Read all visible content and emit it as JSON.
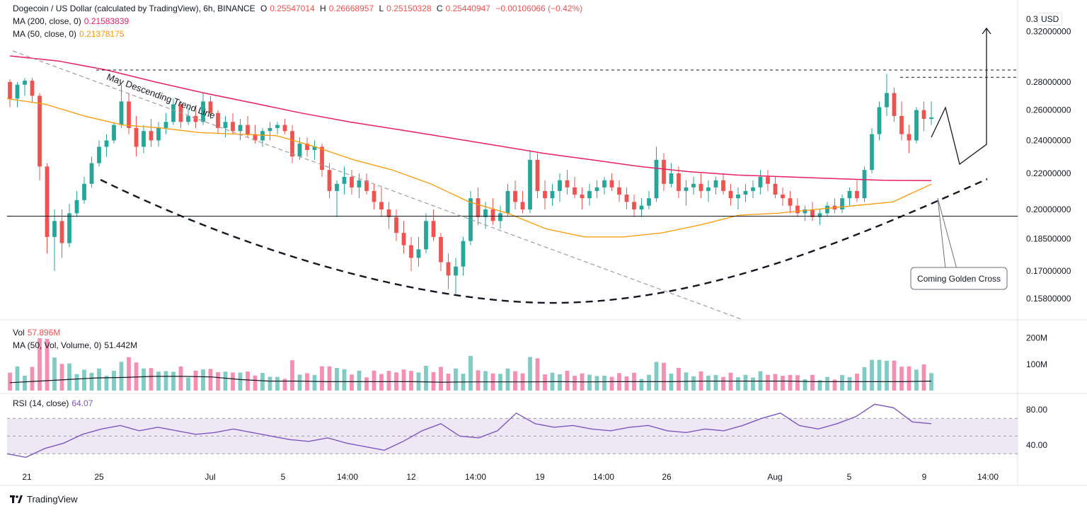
{
  "header": {
    "symbol": "Dogecoin / US Dollar (calculated by TradingView), 6h, BINANCE",
    "o_label": "O",
    "o_value": "0.25547014",
    "h_label": "H",
    "h_value": "0.26668957",
    "l_label": "L",
    "l_value": "0.25150328",
    "c_label": "C",
    "c_value": "0.25440947",
    "change": "−0.00106066 (−0.42%)"
  },
  "indicators": {
    "ma200_label": "MA (200, close, 0)",
    "ma200_value": "0.21583839",
    "ma50_label": "MA (50, close, 0)",
    "ma50_value": "0.21378175",
    "vol_label": "Vol",
    "vol_value": "57.896M",
    "volma_label": "MA (50, Vol, Volume, 0)",
    "volma_value": "51.442M",
    "rsi_label": "RSI (14, close)",
    "rsi_value": "64.07"
  },
  "currency": "USD",
  "footer": {
    "brand": "TradingView"
  },
  "colors": {
    "up": "#26a69a",
    "down": "#ef5350",
    "ma200": "#e91e63",
    "ma50": "#ff9800",
    "rsi": "#7e57c2",
    "rsi_band": "#ede7f6",
    "vol_up": "#80cbc4",
    "vol_down": "#f48fb1"
  },
  "chart_data": {
    "type": "candlestick",
    "price_axis_ticks": [
      "0.3",
      "0.32000000",
      "0.28000000",
      "0.26000000",
      "0.24000000",
      "0.22000000",
      "0.20000000",
      "0.18500000",
      "0.17000000",
      "0.15800000"
    ],
    "time_axis_ticks": [
      "21",
      "25",
      "Jul",
      "5",
      "14:00",
      "12",
      "14:00",
      "19",
      "14:00",
      "26",
      "Aug",
      "5",
      "9",
      "14:00"
    ],
    "volume_axis_ticks": [
      "200M",
      "100M"
    ],
    "rsi_axis_ticks": [
      "80.00",
      "40.00"
    ],
    "annotations": [
      "May Descending Trend Line",
      "Coming Golden Cross"
    ],
    "candles_ohlc_approx": [
      [
        0.28,
        0.282,
        0.262,
        0.268
      ],
      [
        0.268,
        0.28,
        0.262,
        0.278
      ],
      [
        0.278,
        0.283,
        0.27,
        0.281
      ],
      [
        0.281,
        0.283,
        0.265,
        0.27
      ],
      [
        0.27,
        0.272,
        0.216,
        0.224
      ],
      [
        0.224,
        0.226,
        0.178,
        0.186
      ],
      [
        0.186,
        0.2,
        0.17,
        0.194
      ],
      [
        0.194,
        0.2,
        0.176,
        0.183
      ],
      [
        0.183,
        0.203,
        0.181,
        0.198
      ],
      [
        0.198,
        0.21,
        0.196,
        0.205
      ],
      [
        0.205,
        0.218,
        0.203,
        0.214
      ],
      [
        0.214,
        0.23,
        0.212,
        0.226
      ],
      [
        0.226,
        0.24,
        0.224,
        0.236
      ],
      [
        0.236,
        0.244,
        0.23,
        0.24
      ],
      [
        0.24,
        0.252,
        0.238,
        0.25
      ],
      [
        0.25,
        0.278,
        0.248,
        0.266
      ],
      [
        0.266,
        0.272,
        0.244,
        0.248
      ],
      [
        0.248,
        0.256,
        0.23,
        0.236
      ],
      [
        0.236,
        0.25,
        0.232,
        0.246
      ],
      [
        0.246,
        0.254,
        0.236,
        0.24
      ],
      [
        0.24,
        0.252,
        0.236,
        0.248
      ],
      [
        0.248,
        0.258,
        0.244,
        0.252
      ],
      [
        0.252,
        0.268,
        0.25,
        0.264
      ],
      [
        0.264,
        0.266,
        0.248,
        0.252
      ],
      [
        0.252,
        0.262,
        0.25,
        0.256
      ],
      [
        0.256,
        0.262,
        0.248,
        0.252
      ],
      [
        0.252,
        0.272,
        0.25,
        0.266
      ],
      [
        0.266,
        0.27,
        0.254,
        0.258
      ],
      [
        0.258,
        0.26,
        0.244,
        0.248
      ],
      [
        0.248,
        0.256,
        0.242,
        0.252
      ],
      [
        0.252,
        0.258,
        0.244,
        0.246
      ],
      [
        0.246,
        0.254,
        0.24,
        0.25
      ],
      [
        0.25,
        0.256,
        0.242,
        0.244
      ],
      [
        0.244,
        0.25,
        0.238,
        0.24
      ],
      [
        0.24,
        0.248,
        0.236,
        0.246
      ],
      [
        0.246,
        0.252,
        0.24,
        0.248
      ],
      [
        0.248,
        0.252,
        0.244,
        0.25
      ],
      [
        0.25,
        0.254,
        0.244,
        0.246
      ],
      [
        0.246,
        0.25,
        0.226,
        0.23
      ],
      [
        0.23,
        0.242,
        0.228,
        0.238
      ],
      [
        0.238,
        0.242,
        0.23,
        0.234
      ],
      [
        0.234,
        0.24,
        0.228,
        0.236
      ],
      [
        0.236,
        0.238,
        0.218,
        0.222
      ],
      [
        0.222,
        0.226,
        0.206,
        0.21
      ],
      [
        0.21,
        0.216,
        0.196,
        0.214
      ],
      [
        0.214,
        0.224,
        0.208,
        0.218
      ],
      [
        0.218,
        0.222,
        0.208,
        0.212
      ],
      [
        0.212,
        0.22,
        0.206,
        0.216
      ],
      [
        0.216,
        0.22,
        0.208,
        0.21
      ],
      [
        0.21,
        0.214,
        0.2,
        0.204
      ],
      [
        0.204,
        0.212,
        0.196,
        0.2
      ],
      [
        0.2,
        0.204,
        0.19,
        0.196
      ],
      [
        0.196,
        0.2,
        0.184,
        0.188
      ],
      [
        0.188,
        0.194,
        0.178,
        0.182
      ],
      [
        0.182,
        0.186,
        0.17,
        0.176
      ],
      [
        0.176,
        0.186,
        0.172,
        0.18
      ],
      [
        0.18,
        0.198,
        0.178,
        0.194
      ],
      [
        0.194,
        0.2,
        0.184,
        0.186
      ],
      [
        0.186,
        0.188,
        0.17,
        0.174
      ],
      [
        0.174,
        0.178,
        0.162,
        0.168
      ],
      [
        0.168,
        0.176,
        0.16,
        0.172
      ],
      [
        0.172,
        0.186,
        0.168,
        0.184
      ],
      [
        0.184,
        0.21,
        0.182,
        0.206
      ],
      [
        0.206,
        0.212,
        0.192,
        0.196
      ],
      [
        0.196,
        0.204,
        0.19,
        0.2
      ],
      [
        0.2,
        0.206,
        0.192,
        0.194
      ],
      [
        0.194,
        0.202,
        0.19,
        0.198
      ],
      [
        0.198,
        0.214,
        0.196,
        0.21
      ],
      [
        0.21,
        0.216,
        0.2,
        0.204
      ],
      [
        0.204,
        0.21,
        0.198,
        0.2
      ],
      [
        0.2,
        0.234,
        0.198,
        0.228
      ],
      [
        0.228,
        0.232,
        0.206,
        0.21
      ],
      [
        0.21,
        0.216,
        0.2,
        0.206
      ],
      [
        0.206,
        0.214,
        0.202,
        0.21
      ],
      [
        0.21,
        0.22,
        0.204,
        0.216
      ],
      [
        0.216,
        0.222,
        0.208,
        0.212
      ],
      [
        0.212,
        0.218,
        0.206,
        0.208
      ],
      [
        0.208,
        0.212,
        0.2,
        0.206
      ],
      [
        0.206,
        0.214,
        0.202,
        0.21
      ],
      [
        0.21,
        0.216,
        0.206,
        0.212
      ],
      [
        0.212,
        0.218,
        0.208,
        0.216
      ],
      [
        0.216,
        0.22,
        0.21,
        0.212
      ],
      [
        0.212,
        0.216,
        0.204,
        0.208
      ],
      [
        0.208,
        0.212,
        0.2,
        0.204
      ],
      [
        0.204,
        0.208,
        0.196,
        0.2
      ],
      [
        0.2,
        0.206,
        0.196,
        0.202
      ],
      [
        0.202,
        0.21,
        0.2,
        0.206
      ],
      [
        0.206,
        0.236,
        0.204,
        0.228
      ],
      [
        0.228,
        0.232,
        0.21,
        0.214
      ],
      [
        0.214,
        0.226,
        0.212,
        0.22
      ],
      [
        0.22,
        0.224,
        0.206,
        0.21
      ],
      [
        0.21,
        0.216,
        0.202,
        0.212
      ],
      [
        0.212,
        0.218,
        0.208,
        0.214
      ],
      [
        0.214,
        0.22,
        0.206,
        0.21
      ],
      [
        0.21,
        0.216,
        0.204,
        0.212
      ],
      [
        0.212,
        0.218,
        0.208,
        0.216
      ],
      [
        0.216,
        0.22,
        0.208,
        0.21
      ],
      [
        0.21,
        0.214,
        0.202,
        0.206
      ],
      [
        0.206,
        0.212,
        0.2,
        0.208
      ],
      [
        0.208,
        0.214,
        0.204,
        0.21
      ],
      [
        0.21,
        0.216,
        0.206,
        0.212
      ],
      [
        0.212,
        0.222,
        0.208,
        0.218
      ],
      [
        0.218,
        0.222,
        0.21,
        0.214
      ],
      [
        0.214,
        0.218,
        0.206,
        0.208
      ],
      [
        0.208,
        0.212,
        0.202,
        0.206
      ],
      [
        0.206,
        0.21,
        0.198,
        0.202
      ],
      [
        0.202,
        0.206,
        0.196,
        0.198
      ],
      [
        0.198,
        0.202,
        0.194,
        0.2
      ],
      [
        0.2,
        0.204,
        0.194,
        0.196
      ],
      [
        0.196,
        0.2,
        0.192,
        0.198
      ],
      [
        0.198,
        0.204,
        0.196,
        0.202
      ],
      [
        0.202,
        0.206,
        0.198,
        0.2
      ],
      [
        0.2,
        0.208,
        0.198,
        0.206
      ],
      [
        0.206,
        0.212,
        0.202,
        0.21
      ],
      [
        0.21,
        0.216,
        0.204,
        0.206
      ],
      [
        0.206,
        0.224,
        0.204,
        0.222
      ],
      [
        0.222,
        0.248,
        0.22,
        0.244
      ],
      [
        0.244,
        0.266,
        0.24,
        0.262
      ],
      [
        0.262,
        0.286,
        0.256,
        0.272
      ],
      [
        0.272,
        0.276,
        0.252,
        0.256
      ],
      [
        0.256,
        0.266,
        0.24,
        0.244
      ],
      [
        0.244,
        0.25,
        0.232,
        0.24
      ],
      [
        0.24,
        0.262,
        0.238,
        0.26
      ],
      [
        0.26,
        0.266,
        0.246,
        0.254
      ],
      [
        0.254,
        0.266,
        0.25,
        0.255
      ]
    ],
    "ma200_approx": [
      0.3,
      0.296,
      0.289,
      0.28,
      0.272,
      0.265,
      0.258,
      0.252,
      0.247,
      0.242,
      0.237,
      0.232,
      0.228,
      0.224,
      0.221,
      0.219,
      0.218,
      0.217,
      0.216,
      0.2158
    ],
    "ma50_approx": [
      0.268,
      0.264,
      0.256,
      0.25,
      0.248,
      0.245,
      0.244,
      0.243,
      0.236,
      0.228,
      0.222,
      0.214,
      0.204,
      0.198,
      0.19,
      0.186,
      0.186,
      0.188,
      0.192,
      0.197,
      0.198,
      0.2,
      0.202,
      0.204,
      0.2138
    ],
    "rsi_approx": [
      30,
      26,
      36,
      42,
      52,
      58,
      62,
      56,
      60,
      56,
      52,
      54,
      58,
      54,
      50,
      46,
      44,
      48,
      42,
      38,
      34,
      44,
      56,
      64,
      50,
      48,
      56,
      76,
      64,
      60,
      62,
      58,
      56,
      60,
      62,
      56,
      54,
      58,
      56,
      62,
      70,
      76,
      62,
      58,
      64,
      72,
      86,
      82,
      66,
      64
    ]
  }
}
